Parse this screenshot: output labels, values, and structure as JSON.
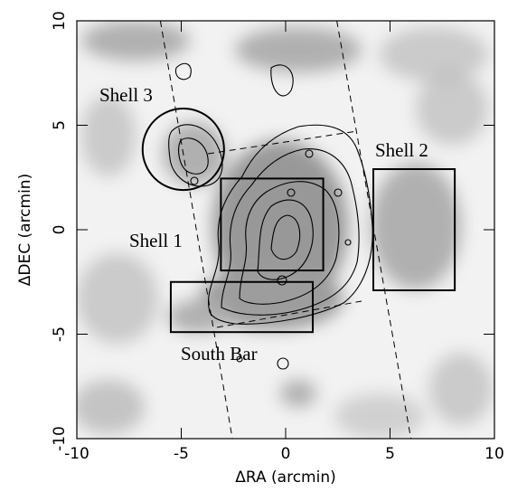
{
  "chart_data": {
    "type": "image",
    "xlabel": "ΔRA (arcmin)",
    "ylabel": "ΔDEC (arcmin)",
    "xlim": [
      -10,
      10
    ],
    "ylim": [
      -10,
      10
    ],
    "xticks": [
      -10,
      -5,
      0,
      5,
      10
    ],
    "yticks": [
      -10,
      -5,
      0,
      5,
      10
    ],
    "regions": [
      {
        "label": "Shell 3",
        "shape": "circle",
        "x": [
          -4.9
        ],
        "y": [
          3.85
        ],
        "r": 1.95
      },
      {
        "label": "Shell 2",
        "shape": "rect",
        "x": [
          4.2,
          8.1
        ],
        "y": [
          -2.9,
          2.9
        ]
      },
      {
        "label": "Shell 1",
        "shape": "rect",
        "x": [
          -3.1,
          1.8
        ],
        "y": [
          -1.95,
          2.45
        ]
      },
      {
        "label": "South Bar",
        "shape": "rect",
        "x": [
          -5.5,
          1.3
        ],
        "y": [
          -4.9,
          -2.5
        ]
      }
    ],
    "dashed_lines": [
      {
        "x": [
          -6,
          -2.55
        ],
        "y": [
          10,
          -10
        ]
      },
      {
        "x": [
          2.45,
          6.0
        ],
        "y": [
          10,
          -10
        ]
      }
    ]
  }
}
